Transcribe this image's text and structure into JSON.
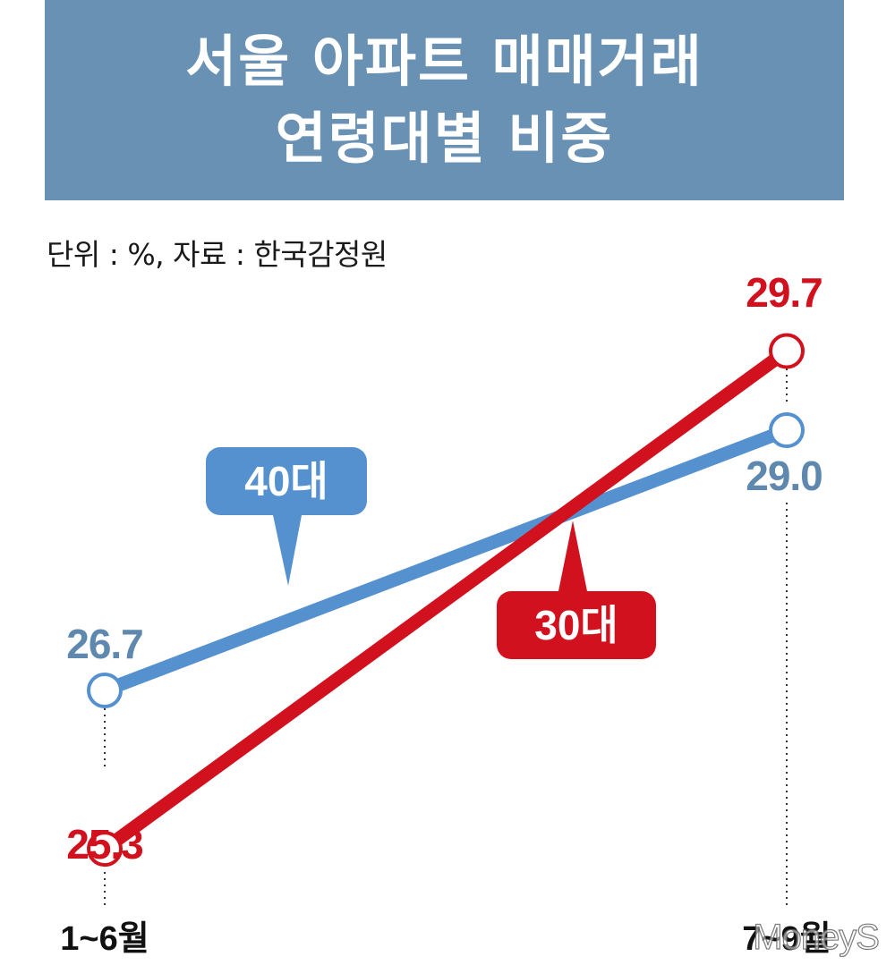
{
  "title_lines": [
    "서울 아파트 매매거래",
    "연령대별 비중"
  ],
  "subtitle": "단위 : %, 자료 : 한국감정원",
  "watermark": "MoneyS",
  "chart_data": {
    "type": "line",
    "x": [
      "1~6월",
      "7~9월"
    ],
    "series": [
      {
        "name": "40대",
        "values": [
          26.7,
          29.0
        ],
        "color": "#5591cf",
        "label_color": "#5f88ae",
        "labels": [
          "26.7",
          "29.0"
        ]
      },
      {
        "name": "30대",
        "values": [
          25.3,
          29.7
        ],
        "color": "#d2111f",
        "label_color": "#d2111f",
        "labels": [
          "25.3",
          "29.7"
        ]
      }
    ],
    "grid": false
  }
}
